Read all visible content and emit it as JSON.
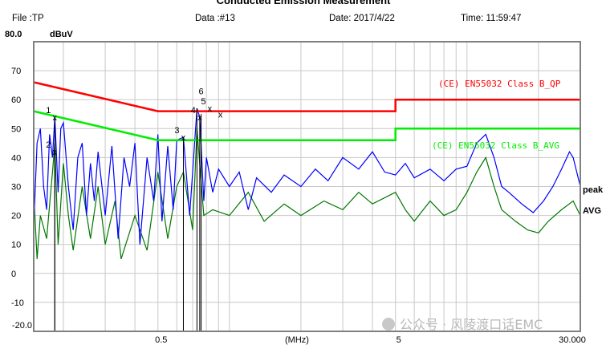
{
  "header": {
    "title": "Conducted Emission Measurement",
    "file": "File :TP",
    "data": "Data :#13",
    "date": "Date: 2017/4/22",
    "time": "Time: 11:59:47"
  },
  "watermark": "公众号 · 风陵渡口话EMC",
  "chart_data": {
    "type": "line",
    "title": "Conducted Emission Measurement",
    "ylabel": "dBuV",
    "xlabel": "(MHz)",
    "xscale": "log",
    "xlim": [
      0.15,
      30
    ],
    "ylim": [
      -20,
      80
    ],
    "grid": true,
    "y_ticks": [
      "80.0",
      "70",
      "60",
      "50",
      "40",
      "30",
      "20",
      "10",
      "0",
      "-10",
      "-20.0"
    ],
    "y_tick_values": [
      80,
      70,
      60,
      50,
      40,
      30,
      20,
      10,
      0,
      -10,
      -20
    ],
    "x_ticks": [
      {
        "v": 0.5,
        "label": "0.5"
      },
      {
        "v": 5,
        "label": "5"
      },
      {
        "v": 30,
        "label": "30.000"
      }
    ],
    "colors": {
      "peak": "#0000ff",
      "avg": "#007700",
      "qp_limit": "#ff0000",
      "avg_limit": "#00ee00",
      "grid": "#c8c8c8"
    },
    "limits": [
      {
        "name": "(CE) EN55032 Class B_QP",
        "color": "#ff0000",
        "x": [
          0.15,
          0.5,
          5,
          5,
          30
        ],
        "y": [
          66,
          56,
          56,
          60,
          60
        ]
      },
      {
        "name": "(CE) EN55032 Class B_AVG",
        "color": "#00ee00",
        "x": [
          0.15,
          0.5,
          5,
          5,
          30
        ],
        "y": [
          56,
          46,
          46,
          50,
          50
        ]
      }
    ],
    "series": [
      {
        "name": "peak",
        "color": "#0000ff",
        "x": [
          0.15,
          0.155,
          0.16,
          0.165,
          0.17,
          0.175,
          0.18,
          0.184,
          0.19,
          0.195,
          0.2,
          0.21,
          0.22,
          0.23,
          0.24,
          0.25,
          0.26,
          0.27,
          0.28,
          0.3,
          0.32,
          0.34,
          0.36,
          0.38,
          0.4,
          0.42,
          0.45,
          0.48,
          0.5,
          0.52,
          0.55,
          0.58,
          0.6,
          0.64,
          0.68,
          0.73,
          0.75,
          0.78,
          0.8,
          0.85,
          0.9,
          1.0,
          1.1,
          1.2,
          1.3,
          1.5,
          1.7,
          2,
          2.3,
          2.6,
          3,
          3.5,
          4,
          4.5,
          5,
          5.5,
          6,
          7,
          8,
          9,
          10,
          11,
          12,
          13,
          14,
          15,
          17,
          19,
          21,
          23,
          25,
          27,
          28,
          30
        ],
        "y": [
          16,
          45,
          50,
          30,
          22,
          48,
          40,
          54,
          28,
          50,
          52,
          30,
          15,
          40,
          45,
          20,
          38,
          25,
          42,
          20,
          44,
          12,
          40,
          30,
          45,
          10,
          40,
          25,
          48,
          18,
          44,
          22,
          46,
          47,
          20,
          57,
          54,
          25,
          40,
          28,
          36,
          30,
          35,
          22,
          33,
          28,
          34,
          30,
          36,
          32,
          40,
          36,
          42,
          35,
          34,
          38,
          33,
          36,
          32,
          36,
          37,
          45,
          48,
          40,
          30,
          28,
          24,
          21,
          25,
          30,
          36,
          42,
          40,
          30
        ]
      },
      {
        "name": "AVG",
        "color": "#007700",
        "x": [
          0.15,
          0.155,
          0.16,
          0.17,
          0.18,
          0.184,
          0.19,
          0.2,
          0.21,
          0.22,
          0.24,
          0.26,
          0.28,
          0.3,
          0.33,
          0.35,
          0.4,
          0.45,
          0.5,
          0.55,
          0.6,
          0.64,
          0.7,
          0.73,
          0.78,
          0.85,
          1,
          1.2,
          1.4,
          1.7,
          2,
          2.5,
          3,
          3.5,
          4,
          5,
          5.5,
          6,
          7,
          8,
          9,
          10,
          11,
          12,
          13,
          14,
          16,
          18,
          20,
          22,
          25,
          28,
          30
        ],
        "y": [
          28,
          5,
          20,
          12,
          35,
          45,
          10,
          38,
          20,
          8,
          30,
          12,
          30,
          10,
          25,
          5,
          20,
          8,
          35,
          12,
          30,
          35,
          15,
          50,
          20,
          22,
          20,
          28,
          18,
          24,
          20,
          25,
          22,
          28,
          24,
          28,
          22,
          18,
          25,
          20,
          22,
          28,
          35,
          40,
          30,
          22,
          18,
          15,
          14,
          18,
          22,
          25,
          20
        ]
      }
    ],
    "markers": [
      {
        "label": "1",
        "x": 0.184,
        "y": 54
      },
      {
        "label": "2",
        "x": 0.184,
        "y": 42
      },
      {
        "label": "3",
        "x": 0.64,
        "y": 47
      },
      {
        "label": "4",
        "x": 0.75,
        "y": 54
      },
      {
        "label": "5",
        "x": 0.73,
        "y": 57
      },
      {
        "label": "6",
        "x": 0.76,
        "y": 55
      }
    ],
    "trace_labels": {
      "peak": "peak",
      "avg": "AVG"
    }
  }
}
